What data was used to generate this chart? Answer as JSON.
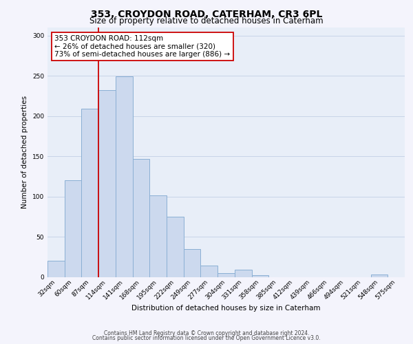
{
  "title": "353, CROYDON ROAD, CATERHAM, CR3 6PL",
  "subtitle": "Size of property relative to detached houses in Caterham",
  "xlabel": "Distribution of detached houses by size in Caterham",
  "ylabel": "Number of detached properties",
  "bar_labels": [
    "32sqm",
    "60sqm",
    "87sqm",
    "114sqm",
    "141sqm",
    "168sqm",
    "195sqm",
    "222sqm",
    "249sqm",
    "277sqm",
    "304sqm",
    "331sqm",
    "358sqm",
    "385sqm",
    "412sqm",
    "439sqm",
    "466sqm",
    "494sqm",
    "521sqm",
    "548sqm",
    "575sqm"
  ],
  "bar_values": [
    20,
    120,
    209,
    232,
    249,
    147,
    101,
    75,
    35,
    14,
    5,
    9,
    2,
    0,
    0,
    0,
    0,
    0,
    0,
    3,
    0
  ],
  "bar_color": "#ccd9ee",
  "bar_edge_color": "#8aafd4",
  "vline_x": 2.5,
  "vline_color": "#cc0000",
  "annotation_title": "353 CROYDON ROAD: 112sqm",
  "annotation_line1": "← 26% of detached houses are smaller (320)",
  "annotation_line2": "73% of semi-detached houses are larger (886) →",
  "annotation_box_facecolor": "#ffffff",
  "annotation_box_edgecolor": "#cc0000",
  "ylim": [
    0,
    310
  ],
  "yticks": [
    0,
    50,
    100,
    150,
    200,
    250,
    300
  ],
  "grid_color": "#c8d4e8",
  "background_color": "#e8eef8",
  "fig_facecolor": "#f4f4fc",
  "footer_line1": "Contains HM Land Registry data © Crown copyright and database right 2024.",
  "footer_line2": "Contains public sector information licensed under the Open Government Licence v3.0.",
  "title_fontsize": 10,
  "subtitle_fontsize": 8.5,
  "axis_label_fontsize": 7.5,
  "tick_fontsize": 6.5,
  "annotation_fontsize": 7.5,
  "footer_fontsize": 5.5
}
